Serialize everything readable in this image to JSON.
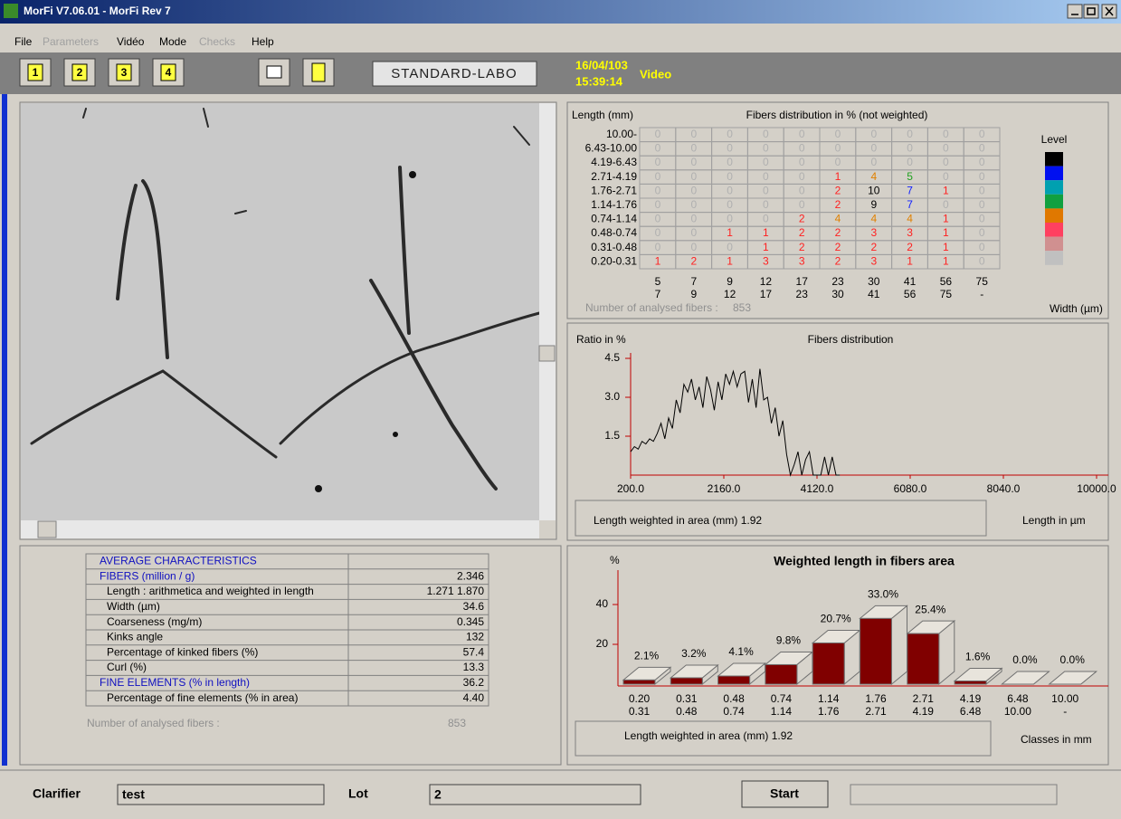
{
  "window": {
    "title": "MorFi V7.06.01 - MorFi  Rev 7"
  },
  "menu": [
    "File",
    "Parameters",
    "Vidéo",
    "Mode",
    "Checks",
    "Help"
  ],
  "toolbar": {
    "buttons": [
      "1",
      "2",
      "3",
      "4"
    ],
    "profile": "STANDARD-LABO",
    "date": "16/04/103",
    "time": "15:39:14",
    "mode": "Video"
  },
  "characteristics": {
    "rows": [
      [
        "AVERAGE CHARACTERISTICS"
      ],
      [
        "FIBERS (million / g)",
        "2.346"
      ],
      [
        "Length : arithmetica and weighted in length",
        "1.271  1.870"
      ],
      [
        "Width (µm)",
        "34.6"
      ],
      [
        "Coarseness (mg/m)",
        "0.345"
      ],
      [
        "Kinks angle",
        "132"
      ],
      [
        "Percentage of kinked fibers (%)",
        "57.4"
      ],
      [
        "Curl (%)",
        "13.3"
      ],
      [
        "FINE ELEMENTS (% in length)",
        "36.2"
      ],
      [
        "Percentage of fine elements (% in area)",
        "4.40"
      ]
    ],
    "count_label": "Number of analysed fibers :",
    "count": 853
  },
  "matrix": {
    "title": "Fibers distribution in % (not weighted)",
    "y_label": "Length (mm)",
    "x_label": "Width (µm)",
    "rows": [
      "10.00-",
      "6.43-10.00",
      "4.19-6.43",
      "2.71-4.19",
      "1.76-2.71",
      "1.14-1.76",
      "0.74-1.14",
      "0.48-0.74",
      "0.31-0.48",
      "0.20-0.31"
    ],
    "cols_from": [
      5,
      7,
      9,
      12,
      17,
      23,
      30,
      41,
      56,
      75
    ],
    "cols_to": [
      7,
      9,
      12,
      17,
      23,
      30,
      41,
      56,
      75,
      "-"
    ],
    "values": [
      [
        0,
        0,
        0,
        0,
        0,
        0,
        0,
        0,
        0,
        0
      ],
      [
        0,
        0,
        0,
        0,
        0,
        0,
        0,
        0,
        0,
        0
      ],
      [
        0,
        0,
        0,
        0,
        0,
        0,
        0,
        0,
        0,
        0
      ],
      [
        0,
        0,
        0,
        0,
        0,
        1,
        4,
        5,
        0,
        0
      ],
      [
        0,
        0,
        0,
        0,
        0,
        2,
        10,
        7,
        1,
        0
      ],
      [
        0,
        0,
        0,
        0,
        0,
        2,
        9,
        7,
        0,
        0
      ],
      [
        0,
        0,
        0,
        0,
        2,
        4,
        4,
        4,
        1,
        0
      ],
      [
        0,
        0,
        1,
        1,
        2,
        2,
        3,
        3,
        1,
        0
      ],
      [
        0,
        0,
        0,
        1,
        2,
        2,
        2,
        2,
        1,
        0
      ],
      [
        1,
        2,
        1,
        3,
        3,
        2,
        3,
        1,
        1,
        0
      ]
    ],
    "count_label": "Number of analysed fibers :",
    "count": 853,
    "level_label": "Level",
    "level_colors": [
      "#000000",
      "#0010f0",
      "#00a0b0",
      "#10a040",
      "#e07800",
      "#ff4060",
      "#d09090",
      "#c0c0c0"
    ]
  },
  "line_chart": {
    "type": "line",
    "title": "Fibers distribution",
    "y_label": "Ratio in %",
    "x_label": "Length in µm",
    "color": "#000000",
    "axis_color": "#c00000",
    "x": [
      200,
      280,
      360,
      440,
      520,
      600,
      680,
      760,
      840,
      920,
      1000,
      1080,
      1160,
      1240,
      1320,
      1400,
      1480,
      1560,
      1640,
      1720,
      1800,
      1880,
      1960,
      2040,
      2120,
      2200,
      2280,
      2360,
      2440,
      2520,
      2600,
      2680,
      2760,
      2840,
      2920,
      3000,
      3080,
      3160,
      3240,
      3320,
      3400,
      3480,
      3560,
      3640,
      3720,
      3800,
      3880,
      3960,
      4040,
      4120,
      4200,
      4280,
      4360,
      4440,
      4520,
      4600
    ],
    "values": [
      0.9,
      1.1,
      1.0,
      1.3,
      1.2,
      1.4,
      1.3,
      1.6,
      2.0,
      1.4,
      2.2,
      1.8,
      2.9,
      2.4,
      3.5,
      3.2,
      3.7,
      2.9,
      3.4,
      2.6,
      3.8,
      3.3,
      2.5,
      3.6,
      2.9,
      3.9,
      3.5,
      4.0,
      3.4,
      3.9,
      4.0,
      2.8,
      3.7,
      2.6,
      4.1,
      2.9,
      3.0,
      2.0,
      2.6,
      1.5,
      2.1,
      0.8,
      0.0,
      0.4,
      0.9,
      0.0,
      0.6,
      0.9,
      0.0,
      0.0,
      0.0,
      0.7,
      0.0,
      0.7,
      0.0,
      0.0
    ],
    "xlim": [
      200,
      10000
    ],
    "ylim": [
      0,
      4.5
    ],
    "xticks": [
      {
        "value": 200,
        "label": "200.0"
      },
      {
        "value": 2160,
        "label": "2160.0"
      },
      {
        "value": 4120,
        "label": "4120.0"
      },
      {
        "value": 6080,
        "label": "6080.0"
      },
      {
        "value": 8040,
        "label": "8040.0"
      },
      {
        "value": 10000,
        "label": "10000.0"
      }
    ],
    "yticks": [
      1.5,
      {
        "value": 3,
        "label": "3.0"
      },
      4.5
    ],
    "summary": "Length weighted in area  (mm) 1.92"
  },
  "bar_chart": {
    "type": "bar",
    "title": "Weighted length in fibers area",
    "y_label": "%",
    "x_label": "Classes in mm",
    "color": "#800000",
    "axis_color": "#c00000",
    "categories": [
      [
        "0.20",
        "0.31"
      ],
      [
        "0.31",
        "0.48"
      ],
      [
        "0.48",
        "0.74"
      ],
      [
        "0.74",
        "1.14"
      ],
      [
        "1.14",
        "1.76"
      ],
      [
        "1.76",
        "2.71"
      ],
      [
        "2.71",
        "4.19"
      ],
      [
        "4.19",
        "6.48"
      ],
      [
        "6.48",
        "10.00"
      ],
      [
        "10.00",
        "-"
      ]
    ],
    "values": [
      2.1,
      3.2,
      4.1,
      9.8,
      20.7,
      33.0,
      25.4,
      1.6,
      0.0,
      0.0
    ],
    "value_labels": [
      "2.1%",
      "3.2%",
      "4.1%",
      "9.8%",
      "20.7%",
      "33.0%",
      "25.4%",
      "1.6%",
      "0.0%",
      "0.0%"
    ],
    "ylim": [
      0,
      55
    ],
    "yticks": [
      20,
      40
    ],
    "summary": "Length weighted in area  (mm) 1.92"
  },
  "footer": {
    "clarifier_label": "Clarifier",
    "clarifier": "test",
    "lot_label": "Lot",
    "lot": "2",
    "start": "Start"
  }
}
